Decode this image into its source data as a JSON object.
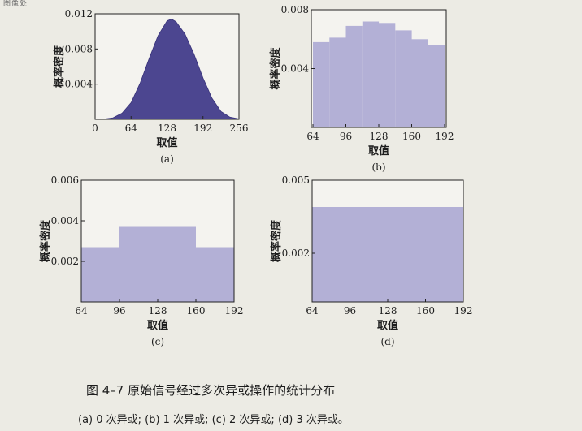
{
  "page_header": "图像处",
  "caption": {
    "title": "图 4–7 原始信号经过多次异或操作的统计分布",
    "subtitle": "(a) 0 次异或; (b) 1 次异或; (c) 2 次异或; (d) 3 次异或。"
  },
  "colors": {
    "filled": "#4c4690",
    "light": "#b3b0d6"
  },
  "chart_data": [
    {
      "id": "a",
      "type": "area",
      "panel_label": "(a)",
      "xlabel": "取值",
      "ylabel": "概率密度",
      "xlim": [
        0,
        256
      ],
      "ylim": [
        0,
        0.012
      ],
      "xticks": [
        0,
        64,
        128,
        192,
        256
      ],
      "xtick_labels": [
        "0",
        "64",
        "128",
        "192",
        "256"
      ],
      "yticks": [
        0.004,
        0.008,
        0.012
      ],
      "ytick_labels": [
        "0.004",
        "0.008",
        "0.012"
      ],
      "style": "filled",
      "x": [
        0,
        16,
        32,
        48,
        64,
        80,
        96,
        112,
        128,
        136,
        144,
        160,
        176,
        192,
        208,
        224,
        240,
        256
      ],
      "y": [
        0,
        3e-05,
        0.00018,
        0.0007,
        0.0019,
        0.0041,
        0.0069,
        0.0095,
        0.0112,
        0.0114,
        0.0111,
        0.0097,
        0.0074,
        0.0047,
        0.0024,
        0.0009,
        0.00025,
        5e-05
      ]
    },
    {
      "id": "b",
      "type": "bar",
      "panel_label": "(b)",
      "xlabel": "取值",
      "ylabel": "概率密度",
      "xlim": [
        64,
        192
      ],
      "ylim": [
        0,
        0.008
      ],
      "xticks": [
        64,
        96,
        128,
        160,
        192
      ],
      "xtick_labels": [
        "64",
        "96",
        "128",
        "160",
        "192"
      ],
      "yticks": [
        0.004,
        0.008
      ],
      "ytick_labels": [
        "0.004",
        "0.008"
      ],
      "style": "light",
      "bins": [
        {
          "x0": 64,
          "x1": 80,
          "value": 0.0058
        },
        {
          "x0": 80,
          "x1": 96,
          "value": 0.0061
        },
        {
          "x0": 96,
          "x1": 112,
          "value": 0.0069
        },
        {
          "x0": 112,
          "x1": 128,
          "value": 0.0072
        },
        {
          "x0": 128,
          "x1": 144,
          "value": 0.0071
        },
        {
          "x0": 144,
          "x1": 160,
          "value": 0.0066
        },
        {
          "x0": 160,
          "x1": 176,
          "value": 0.006
        },
        {
          "x0": 176,
          "x1": 192,
          "value": 0.0056
        }
      ]
    },
    {
      "id": "c",
      "type": "bar",
      "panel_label": "(c)",
      "xlabel": "取值",
      "ylabel": "概率密度",
      "xlim": [
        64,
        192
      ],
      "ylim": [
        0,
        0.006
      ],
      "xticks": [
        64,
        96,
        128,
        160,
        192
      ],
      "xtick_labels": [
        "64",
        "96",
        "128",
        "160",
        "192"
      ],
      "yticks": [
        0.002,
        0.004,
        0.006
      ],
      "ytick_labels": [
        "0.002",
        "0.004",
        "0.006"
      ],
      "style": "light",
      "bins": [
        {
          "x0": 64,
          "x1": 96,
          "value": 0.0027
        },
        {
          "x0": 96,
          "x1": 160,
          "value": 0.0037
        },
        {
          "x0": 160,
          "x1": 192,
          "value": 0.0027
        }
      ]
    },
    {
      "id": "d",
      "type": "bar",
      "panel_label": "(d)",
      "xlabel": "取值",
      "ylabel": "概率密度",
      "xlim": [
        64,
        192
      ],
      "ylim": [
        0,
        0.005
      ],
      "xticks": [
        64,
        96,
        128,
        160,
        192
      ],
      "xtick_labels": [
        "64",
        "96",
        "128",
        "160",
        "192"
      ],
      "yticks": [
        0.002,
        0.005
      ],
      "ytick_labels": [
        "0.002",
        "0.005"
      ],
      "style": "light",
      "bins": [
        {
          "x0": 64,
          "x1": 192,
          "value": 0.0039
        }
      ]
    }
  ]
}
